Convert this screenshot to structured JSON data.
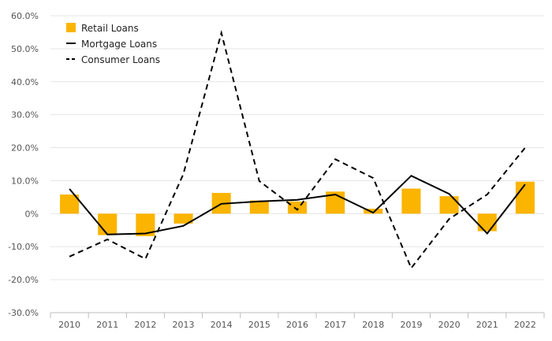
{
  "chart_data": {
    "type": "bar",
    "title": "",
    "xlabel": "",
    "ylabel": "",
    "categories": [
      "2010",
      "2011",
      "2012",
      "2013",
      "2014",
      "2015",
      "2016",
      "2017",
      "2018",
      "2019",
      "2020",
      "2021",
      "2022"
    ],
    "ylim": [
      -30,
      60
    ],
    "yticks": [
      60,
      50,
      40,
      30,
      20,
      10,
      0,
      -10,
      -20,
      -30
    ],
    "ytick_labels": [
      "60.0%",
      "50.0%",
      "40.0%",
      "30.0%",
      "20.0%",
      "10.0%",
      "0%",
      "-10.0%",
      "-20.0%",
      "-30.0%"
    ],
    "grid": true,
    "legend_position": "top-left",
    "series": [
      {
        "name": "Retail Loans",
        "kind": "bar",
        "color": "#fbb400",
        "values": [
          5.8,
          -6.5,
          -6.8,
          -3.0,
          6.3,
          4.0,
          3.7,
          6.7,
          1.5,
          7.6,
          5.3,
          -5.3,
          9.7
        ]
      },
      {
        "name": "Mortgage Loans",
        "kind": "line",
        "dash": "solid",
        "color": "#000000",
        "values": [
          7.5,
          -6.3,
          -6.0,
          -3.7,
          3.0,
          3.7,
          4.2,
          5.8,
          0.3,
          11.5,
          6.0,
          -6.0,
          8.9
        ]
      },
      {
        "name": "Consumer Loans",
        "kind": "line",
        "dash": "dashed",
        "color": "#000000",
        "values": [
          -13.0,
          -7.8,
          -13.7,
          12.0,
          54.8,
          9.9,
          1.2,
          16.5,
          10.8,
          -16.5,
          -1.6,
          5.8,
          20.0
        ]
      }
    ]
  }
}
